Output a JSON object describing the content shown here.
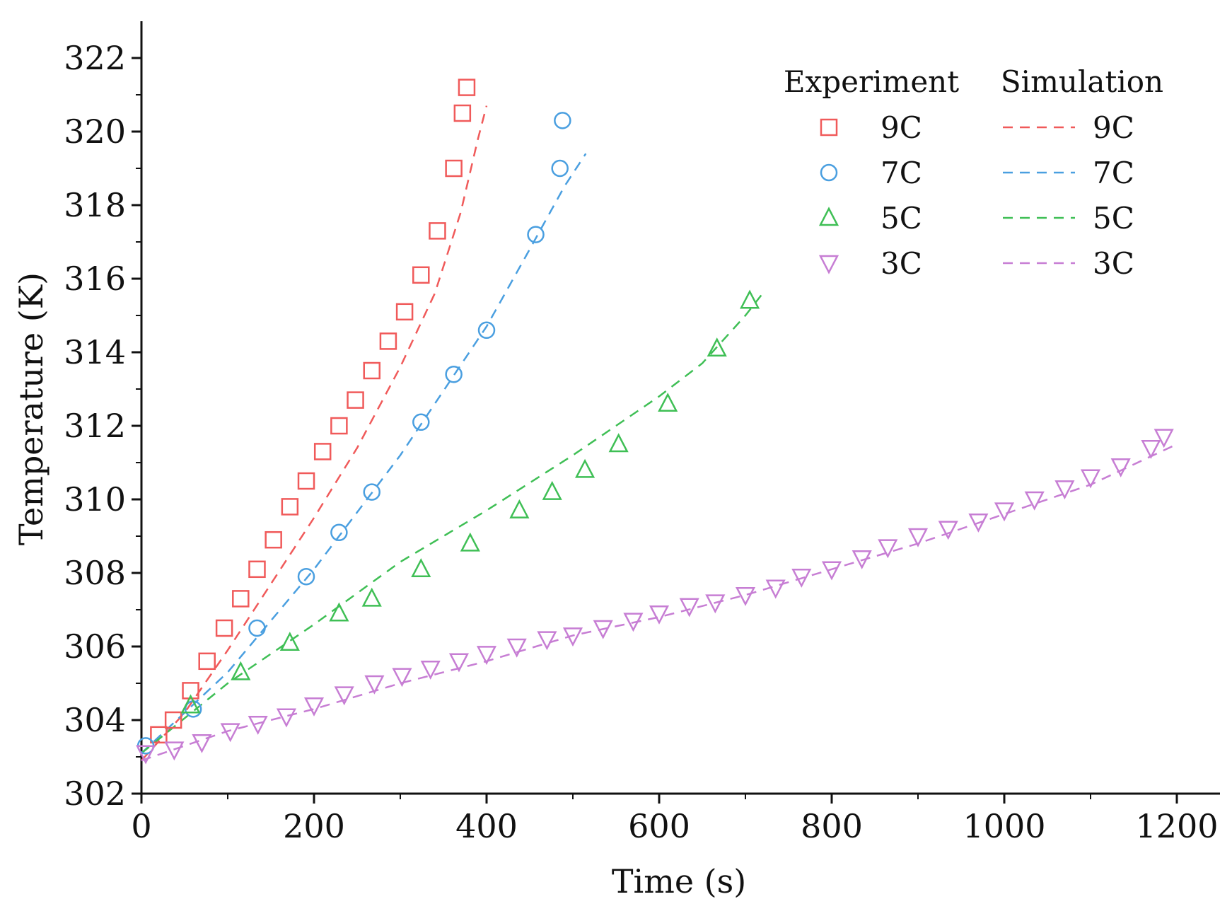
{
  "chart_data": {
    "type": "scatter",
    "title": "",
    "xlabel": "Time (s)",
    "ylabel": "Temperature (K)",
    "xlim": [
      0,
      1250
    ],
    "ylim": [
      302,
      323
    ],
    "xticks": [
      0,
      200,
      400,
      600,
      800,
      1000,
      1200
    ],
    "yticks": [
      302,
      304,
      306,
      308,
      310,
      312,
      314,
      316,
      318,
      320,
      322
    ],
    "legend": {
      "position": "top-right",
      "experiment_header": "Experiment",
      "simulation_header": "Simulation"
    },
    "series": [
      {
        "name": "9C",
        "color": "#f05a5a",
        "marker": "square",
        "experiment": [
          [
            20,
            303.6
          ],
          [
            37,
            304.0
          ],
          [
            57,
            304.8
          ],
          [
            76,
            305.6
          ],
          [
            96,
            306.5
          ],
          [
            115,
            307.3
          ],
          [
            134,
            308.1
          ],
          [
            153,
            308.9
          ],
          [
            172,
            309.8
          ],
          [
            191,
            310.5
          ],
          [
            210,
            311.3
          ],
          [
            229,
            312.0
          ],
          [
            248,
            312.7
          ],
          [
            267,
            313.5
          ],
          [
            286,
            314.3
          ],
          [
            305,
            315.1
          ],
          [
            324,
            316.1
          ],
          [
            343,
            317.3
          ],
          [
            362,
            319.0
          ],
          [
            372,
            320.5
          ],
          [
            377,
            321.2
          ]
        ],
        "simulation": [
          [
            0,
            302.9
          ],
          [
            50,
            304.2
          ],
          [
            100,
            305.9
          ],
          [
            150,
            307.7
          ],
          [
            200,
            309.5
          ],
          [
            250,
            311.4
          ],
          [
            300,
            313.6
          ],
          [
            340,
            315.6
          ],
          [
            370,
            317.8
          ],
          [
            390,
            319.8
          ],
          [
            400,
            320.7
          ]
        ]
      },
      {
        "name": "7C",
        "color": "#4a9fe0",
        "marker": "circle",
        "experiment": [
          [
            5,
            303.3
          ],
          [
            60,
            304.3
          ],
          [
            134,
            306.5
          ],
          [
            191,
            307.9
          ],
          [
            229,
            309.1
          ],
          [
            267,
            310.2
          ],
          [
            324,
            312.1
          ],
          [
            362,
            313.4
          ],
          [
            400,
            314.6
          ],
          [
            457,
            317.2
          ],
          [
            485,
            319.0
          ],
          [
            488,
            320.3
          ]
        ],
        "simulation": [
          [
            0,
            303.1
          ],
          [
            100,
            305.3
          ],
          [
            200,
            308.1
          ],
          [
            300,
            311.2
          ],
          [
            400,
            314.7
          ],
          [
            450,
            316.8
          ],
          [
            490,
            318.5
          ],
          [
            515,
            319.4
          ]
        ]
      },
      {
        "name": "5C",
        "color": "#3fbf55",
        "marker": "triangle-up",
        "experiment": [
          [
            57,
            304.4
          ],
          [
            115,
            305.3
          ],
          [
            172,
            306.1
          ],
          [
            229,
            306.9
          ],
          [
            267,
            307.3
          ],
          [
            324,
            308.1
          ],
          [
            381,
            308.8
          ],
          [
            438,
            309.7
          ],
          [
            476,
            310.2
          ],
          [
            514,
            310.8
          ],
          [
            553,
            311.5
          ],
          [
            610,
            312.6
          ],
          [
            667,
            314.1
          ],
          [
            705,
            315.4
          ]
        ],
        "simulation": [
          [
            0,
            303.1
          ],
          [
            100,
            305.0
          ],
          [
            200,
            306.6
          ],
          [
            300,
            308.3
          ],
          [
            400,
            309.7
          ],
          [
            500,
            311.2
          ],
          [
            600,
            312.8
          ],
          [
            650,
            313.7
          ],
          [
            700,
            315.0
          ],
          [
            720,
            315.6
          ]
        ]
      },
      {
        "name": "3C",
        "color": "#c77ed4",
        "marker": "triangle-down",
        "experiment": [
          [
            5,
            303.1
          ],
          [
            38,
            303.2
          ],
          [
            70,
            303.4
          ],
          [
            103,
            303.7
          ],
          [
            135,
            303.9
          ],
          [
            168,
            304.1
          ],
          [
            200,
            304.4
          ],
          [
            235,
            304.7
          ],
          [
            270,
            305.0
          ],
          [
            302,
            305.2
          ],
          [
            335,
            305.4
          ],
          [
            368,
            305.6
          ],
          [
            400,
            305.8
          ],
          [
            435,
            306.0
          ],
          [
            470,
            306.2
          ],
          [
            500,
            306.3
          ],
          [
            535,
            306.5
          ],
          [
            570,
            306.7
          ],
          [
            600,
            306.9
          ],
          [
            635,
            307.1
          ],
          [
            665,
            307.2
          ],
          [
            700,
            307.4
          ],
          [
            735,
            307.6
          ],
          [
            765,
            307.9
          ],
          [
            800,
            308.1
          ],
          [
            835,
            308.4
          ],
          [
            865,
            308.7
          ],
          [
            900,
            309.0
          ],
          [
            935,
            309.2
          ],
          [
            970,
            309.4
          ],
          [
            1000,
            309.7
          ],
          [
            1035,
            310.0
          ],
          [
            1070,
            310.3
          ],
          [
            1100,
            310.6
          ],
          [
            1135,
            310.9
          ],
          [
            1170,
            311.4
          ],
          [
            1185,
            311.7
          ]
        ],
        "simulation": [
          [
            0,
            302.9
          ],
          [
            100,
            303.7
          ],
          [
            200,
            304.3
          ],
          [
            300,
            305.0
          ],
          [
            400,
            305.6
          ],
          [
            500,
            306.3
          ],
          [
            600,
            306.8
          ],
          [
            700,
            307.4
          ],
          [
            800,
            308.1
          ],
          [
            900,
            308.8
          ],
          [
            1000,
            309.6
          ],
          [
            1100,
            310.4
          ],
          [
            1200,
            311.5
          ]
        ]
      }
    ]
  }
}
